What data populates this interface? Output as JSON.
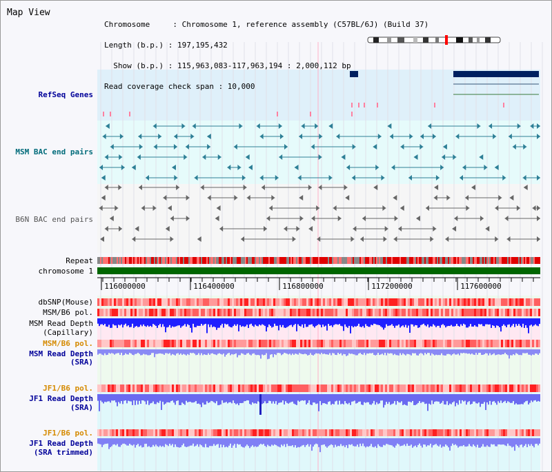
{
  "view": {
    "title": "Map View"
  },
  "info": {
    "line1": "Chromosome     : Chromosome 1, reference assembly (C57BL/6J) (Build 37)",
    "line2": "Length (b.p.) : 197,195,432",
    "line3": "  Show (b.p.) : 115,963,083-117,963,194 : 2,000,112 bp",
    "line4": "Read coverage check span : 10,000"
  },
  "tracks": {
    "refseq": "RefSeq Genes",
    "msm_bac": "MSM BAC end pairs",
    "b6n_bac": "B6N BAC end pairs",
    "repeat": "Repeat",
    "chromosome": "chromosome 1",
    "dbsnp": "dbSNP(Mouse)",
    "msm_b6_pol_1": "MSM/B6 pol.",
    "msm_depth_cap_1": "MSM Read Depth",
    "msm_depth_cap_2": "(Capillary)",
    "msm_b6_pol_2": "MSM/B6 pol.",
    "msm_depth_sra_1": "MSM Read Depth",
    "msm_depth_sra_2": "(SRA)",
    "jf1_b6_pol_1": "JF1/B6 pol.",
    "jf1_depth_sra_1": "JF1 Read Depth",
    "jf1_depth_sra_2": "(SRA)",
    "jf1_b6_pol_2": "JF1/B6 pol.",
    "jf1_depth_trim_1": "JF1 Read Depth",
    "jf1_depth_trim_2": "(SRA trimmed)"
  },
  "axis": {
    "ticks": [
      "116000000",
      "116400000",
      "116800000",
      "117200000",
      "117600000"
    ]
  },
  "colors": {
    "refseq_bg": "#dff0fa",
    "msm_bg": "#e6fbfb",
    "snp_red": "#ff0000",
    "depth_blue": "#0000ff",
    "chrom_green": "#006600"
  }
}
